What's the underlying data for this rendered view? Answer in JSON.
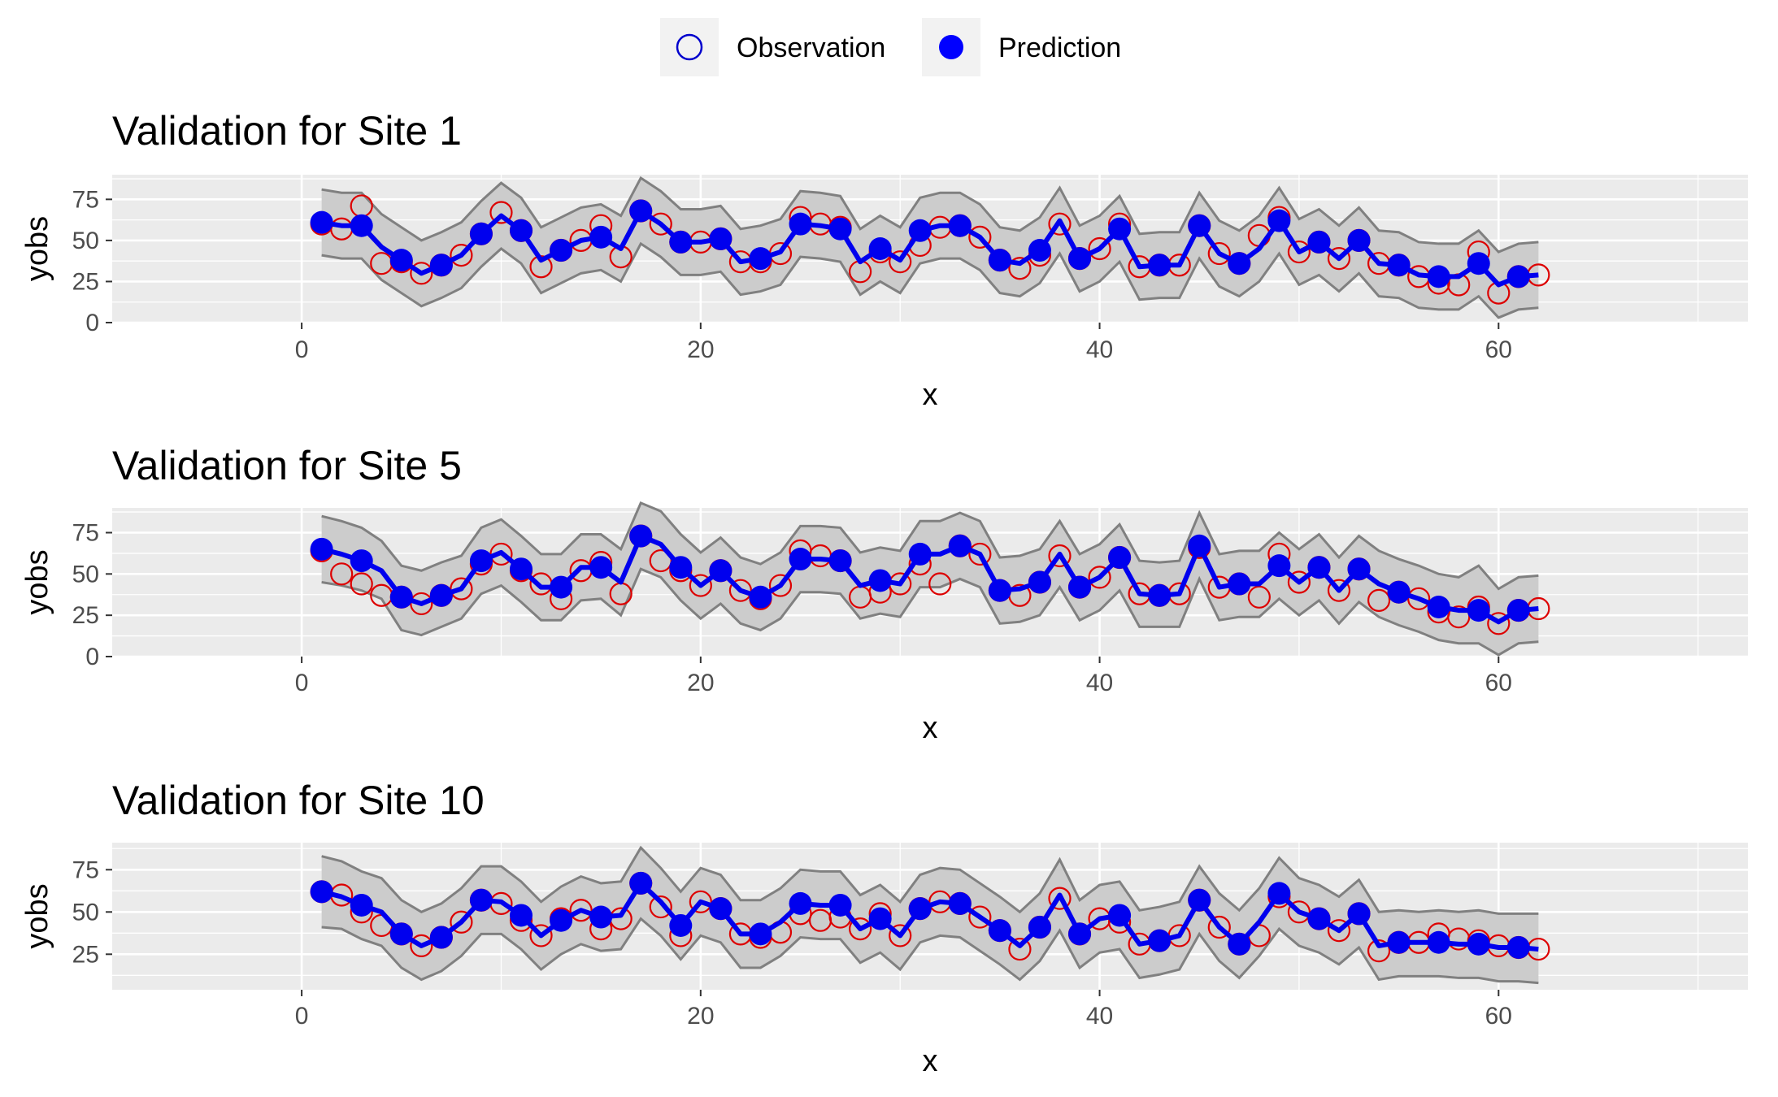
{
  "legend": {
    "position": "top",
    "items": [
      {
        "label": "Observation",
        "shape": "open-circle",
        "color": "#0000CD"
      },
      {
        "label": "Prediction",
        "shape": "filled-circle",
        "color": "#0000FF"
      }
    ]
  },
  "colors": {
    "observation": "#DD0000",
    "prediction": "#0000EE",
    "ribbon_fill": "#CCCCCC",
    "ribbon_line": "#808080",
    "panel_bg": "#EBEBEB",
    "grid": "#FFFFFF"
  },
  "chart_data": [
    {
      "type": "line",
      "title": "Validation for Site 1",
      "xlabel": "x",
      "ylabel": "yobs",
      "xlim": [
        -9.5,
        72.5
      ],
      "ylim": [
        0,
        90
      ],
      "xticks": [
        0,
        20,
        40,
        60
      ],
      "yticks": [
        0,
        25,
        50,
        75
      ],
      "grid": true,
      "series": [
        {
          "name": "Observation",
          "kind": "points",
          "values": [
            60,
            57,
            71,
            36,
            37,
            30,
            35,
            41,
            54,
            67,
            56,
            34,
            44,
            50,
            59,
            40,
            68,
            60,
            49,
            49,
            51,
            37,
            37,
            42,
            64,
            60,
            58,
            31,
            43,
            37,
            47,
            58,
            59,
            52,
            38,
            33,
            41,
            60,
            39,
            45,
            60,
            34,
            35,
            35,
            59,
            42,
            36,
            53,
            64,
            43,
            49,
            39,
            50,
            36,
            35,
            28,
            24,
            23,
            43,
            18,
            28,
            29
          ]
        },
        {
          "name": "Prediction",
          "kind": "points+line",
          "values": [
            61,
            59,
            59,
            46,
            38,
            30,
            35,
            41,
            54,
            65,
            56,
            38,
            44,
            50,
            52,
            45,
            68,
            60,
            49,
            49,
            51,
            37,
            39,
            43,
            60,
            59,
            57,
            37,
            45,
            38,
            56,
            59,
            59,
            52,
            38,
            36,
            44,
            62,
            39,
            45,
            57,
            34,
            35,
            35,
            59,
            42,
            36,
            45,
            62,
            43,
            49,
            39,
            50,
            36,
            35,
            29,
            28,
            28,
            36,
            23,
            28,
            29
          ]
        },
        {
          "name": "upper",
          "kind": "ribbon-upper",
          "values": [
            81,
            79,
            79,
            66,
            58,
            50,
            55,
            61,
            74,
            85,
            76,
            58,
            64,
            70,
            72,
            65,
            88,
            80,
            69,
            69,
            71,
            57,
            59,
            63,
            80,
            79,
            77,
            57,
            65,
            58,
            76,
            79,
            79,
            72,
            58,
            56,
            64,
            82,
            59,
            65,
            77,
            54,
            55,
            55,
            79,
            62,
            56,
            65,
            82,
            63,
            69,
            59,
            70,
            56,
            55,
            49,
            48,
            48,
            56,
            43,
            48,
            49
          ]
        },
        {
          "name": "lower",
          "kind": "ribbon-lower",
          "values": [
            41,
            39,
            39,
            26,
            18,
            10,
            15,
            21,
            34,
            45,
            36,
            18,
            24,
            30,
            32,
            25,
            48,
            40,
            29,
            29,
            31,
            17,
            19,
            23,
            40,
            39,
            37,
            17,
            25,
            18,
            36,
            39,
            39,
            32,
            18,
            16,
            24,
            42,
            19,
            25,
            37,
            14,
            15,
            15,
            39,
            22,
            16,
            25,
            42,
            23,
            29,
            19,
            30,
            16,
            15,
            9,
            8,
            8,
            16,
            3,
            8,
            9
          ]
        }
      ]
    },
    {
      "type": "line",
      "title": "Validation for Site 5",
      "xlabel": "x",
      "ylabel": "yobs",
      "xlim": [
        -9.5,
        72.5
      ],
      "ylim": [
        0,
        90
      ],
      "xticks": [
        0,
        20,
        40,
        60
      ],
      "yticks": [
        0,
        25,
        50,
        75
      ],
      "grid": true,
      "series": [
        {
          "name": "Observation",
          "kind": "points",
          "values": [
            64,
            50,
            44,
            37,
            36,
            32,
            37,
            41,
            56,
            62,
            52,
            44,
            35,
            52,
            57,
            38,
            73,
            58,
            52,
            43,
            52,
            40,
            35,
            43,
            64,
            61,
            58,
            36,
            39,
            44,
            56,
            44,
            67,
            62,
            40,
            37,
            45,
            61,
            42,
            48,
            60,
            38,
            37,
            38,
            66,
            42,
            44,
            36,
            62,
            45,
            54,
            40,
            53,
            34,
            39,
            35,
            27,
            24,
            30,
            20,
            28,
            29
          ]
        },
        {
          "name": "Prediction",
          "kind": "points+line",
          "values": [
            65,
            62,
            58,
            52,
            36,
            32,
            37,
            41,
            58,
            63,
            53,
            42,
            42,
            54,
            54,
            45,
            73,
            68,
            54,
            43,
            52,
            40,
            36,
            43,
            59,
            59,
            58,
            43,
            46,
            44,
            62,
            62,
            67,
            62,
            40,
            41,
            45,
            62,
            42,
            48,
            60,
            38,
            37,
            38,
            67,
            42,
            44,
            44,
            55,
            45,
            54,
            40,
            53,
            44,
            39,
            35,
            30,
            28,
            28,
            21,
            28,
            29
          ]
        },
        {
          "name": "upper",
          "kind": "ribbon-upper",
          "values": [
            85,
            82,
            78,
            70,
            55,
            52,
            57,
            61,
            78,
            83,
            73,
            62,
            62,
            74,
            74,
            65,
            93,
            88,
            74,
            63,
            72,
            60,
            56,
            63,
            79,
            79,
            78,
            63,
            66,
            64,
            82,
            82,
            87,
            82,
            60,
            61,
            65,
            82,
            62,
            68,
            80,
            58,
            57,
            58,
            87,
            62,
            64,
            64,
            75,
            65,
            74,
            60,
            73,
            64,
            59,
            55,
            50,
            48,
            55,
            41,
            48,
            49
          ]
        },
        {
          "name": "lower",
          "kind": "ribbon-lower",
          "values": [
            45,
            43,
            40,
            35,
            16,
            13,
            18,
            23,
            38,
            43,
            33,
            22,
            22,
            34,
            35,
            25,
            53,
            48,
            34,
            23,
            32,
            20,
            16,
            23,
            39,
            39,
            38,
            23,
            26,
            24,
            42,
            42,
            47,
            42,
            20,
            21,
            25,
            42,
            22,
            28,
            40,
            18,
            18,
            18,
            47,
            22,
            24,
            24,
            35,
            25,
            34,
            20,
            33,
            24,
            19,
            15,
            10,
            8,
            8,
            1,
            8,
            9
          ]
        }
      ]
    },
    {
      "type": "line",
      "title": "Validation for Site 10",
      "xlabel": "x",
      "ylabel": "yobs",
      "xlim": [
        -9.5,
        72.5
      ],
      "ylim": [
        4,
        91
      ],
      "xticks": [
        0,
        20,
        40,
        60
      ],
      "yticks": [
        25,
        50,
        75
      ],
      "grid": true,
      "series": [
        {
          "name": "Observation",
          "kind": "points",
          "values": [
            62,
            60,
            50,
            42,
            37,
            30,
            35,
            44,
            57,
            55,
            45,
            36,
            46,
            51,
            40,
            46,
            67,
            53,
            36,
            56,
            52,
            37,
            35,
            38,
            49,
            45,
            47,
            40,
            49,
            36,
            52,
            56,
            55,
            47,
            39,
            28,
            41,
            58,
            37,
            46,
            44,
            31,
            33,
            36,
            57,
            41,
            31,
            36,
            59,
            50,
            46,
            39,
            49,
            27,
            32,
            32,
            37,
            34,
            33,
            30,
            29,
            28
          ]
        },
        {
          "name": "Prediction",
          "kind": "points+line",
          "values": [
            62,
            59,
            54,
            50,
            37,
            30,
            35,
            44,
            57,
            56,
            48,
            36,
            45,
            51,
            47,
            48,
            67,
            56,
            42,
            56,
            52,
            37,
            37,
            44,
            55,
            54,
            54,
            40,
            46,
            36,
            52,
            56,
            55,
            47,
            39,
            30,
            41,
            60,
            37,
            46,
            48,
            31,
            33,
            36,
            57,
            41,
            31,
            44,
            61,
            50,
            46,
            39,
            49,
            30,
            32,
            32,
            32,
            31,
            31,
            29,
            29,
            28
          ]
        },
        {
          "name": "upper",
          "kind": "ribbon-upper",
          "values": [
            83,
            80,
            74,
            70,
            57,
            50,
            55,
            64,
            77,
            77,
            68,
            56,
            65,
            71,
            67,
            68,
            88,
            76,
            62,
            76,
            72,
            57,
            57,
            64,
            75,
            74,
            74,
            60,
            66,
            56,
            72,
            76,
            75,
            67,
            59,
            50,
            61,
            81,
            57,
            66,
            68,
            51,
            53,
            56,
            77,
            61,
            51,
            64,
            82,
            70,
            66,
            59,
            69,
            50,
            51,
            50,
            51,
            50,
            51,
            49,
            49,
            49
          ]
        },
        {
          "name": "lower",
          "kind": "ribbon-lower",
          "values": [
            41,
            40,
            34,
            30,
            17,
            10,
            15,
            24,
            37,
            37,
            28,
            16,
            25,
            31,
            27,
            28,
            46,
            36,
            22,
            36,
            32,
            17,
            17,
            24,
            35,
            34,
            34,
            20,
            26,
            16,
            32,
            36,
            35,
            27,
            19,
            10,
            21,
            39,
            17,
            26,
            28,
            11,
            13,
            16,
            37,
            21,
            11,
            24,
            40,
            30,
            26,
            19,
            29,
            10,
            12,
            12,
            12,
            11,
            11,
            9,
            9,
            8
          ]
        }
      ]
    }
  ]
}
